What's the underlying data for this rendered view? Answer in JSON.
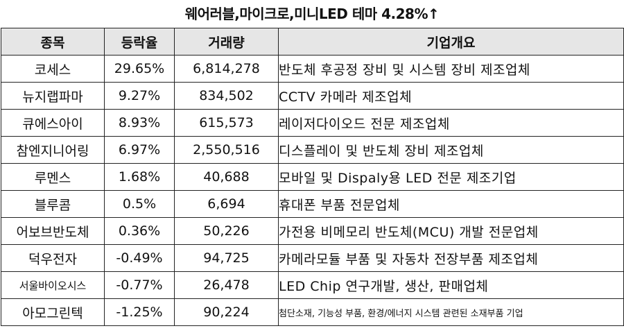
{
  "title": "웨어러블,마이크로,미니LED 테마 4.28%↑",
  "headers": {
    "name": "종목",
    "rate": "등락율",
    "volume": "거래량",
    "overview": "기업개요"
  },
  "rows": [
    {
      "name": "코세스",
      "rate": "29.65%",
      "volume": "6,814,278",
      "overview": "반도체 후공정 장비 및 시스템 장비 제조업체"
    },
    {
      "name": "뉴지랩파마",
      "rate": "9.27%",
      "volume": "834,502",
      "overview": "CCTV 카메라 제조업체"
    },
    {
      "name": "큐에스아이",
      "rate": "8.93%",
      "volume": "615,573",
      "overview": "레이저다이오드 전문 제조업체"
    },
    {
      "name": "참엔지니어링",
      "rate": "6.97%",
      "volume": "2,550,516",
      "overview": "디스플레이 및 반도체 장비 제조업체"
    },
    {
      "name": "루멘스",
      "rate": "1.68%",
      "volume": "40,688",
      "overview": "모바일 및 Dispaly용 LED 전문 제조기업"
    },
    {
      "name": "블루콤",
      "rate": "0.5%",
      "volume": "6,694",
      "overview": "휴대폰 부품 전문업체"
    },
    {
      "name": "어보브반도체",
      "rate": "0.36%",
      "volume": "50,226",
      "overview": "가전용 비메모리 반도체(MCU) 개발 전문업체"
    },
    {
      "name": "덕우전자",
      "rate": "-0.49%",
      "volume": "94,725",
      "overview": "카메라모듈 부품 및 자동차 전장부품 제조업체"
    },
    {
      "name": "서울바이오시스",
      "rate": "-0.77%",
      "volume": "26,478",
      "overview": "LED Chip 연구개발, 생산, 판매업체"
    },
    {
      "name": "아모그린텍",
      "rate": "-1.25%",
      "volume": "90,224",
      "overview": "첨단소재, 기능성 부품, 환경/에너지 시스템 관련된 소재부품 기업"
    }
  ]
}
